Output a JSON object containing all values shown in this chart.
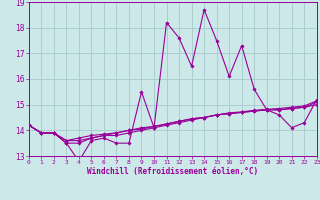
{
  "xlabel": "Windchill (Refroidissement éolien,°C)",
  "x": [
    0,
    1,
    2,
    3,
    4,
    5,
    6,
    7,
    8,
    9,
    10,
    11,
    12,
    13,
    14,
    15,
    16,
    17,
    18,
    19,
    20,
    21,
    22,
    23
  ],
  "line1": [
    14.2,
    13.9,
    13.9,
    13.5,
    12.8,
    13.6,
    13.7,
    13.5,
    13.5,
    15.5,
    14.1,
    18.2,
    17.6,
    16.5,
    18.7,
    17.5,
    16.1,
    17.3,
    15.6,
    14.8,
    14.6,
    14.1,
    14.3,
    15.2
  ],
  "line2": [
    14.2,
    13.9,
    13.9,
    13.5,
    13.5,
    13.7,
    13.8,
    13.8,
    13.9,
    14.0,
    14.1,
    14.2,
    14.3,
    14.4,
    14.5,
    14.6,
    14.65,
    14.7,
    14.75,
    14.8,
    14.8,
    14.85,
    14.9,
    15.0
  ],
  "line3": [
    14.2,
    13.9,
    13.9,
    13.6,
    13.6,
    13.7,
    13.8,
    13.9,
    14.0,
    14.1,
    14.15,
    14.25,
    14.35,
    14.45,
    14.5,
    14.6,
    14.65,
    14.7,
    14.75,
    14.8,
    14.8,
    14.85,
    14.9,
    15.1
  ],
  "line4": [
    14.2,
    13.9,
    13.9,
    13.6,
    13.7,
    13.8,
    13.85,
    13.9,
    14.0,
    14.05,
    14.15,
    14.25,
    14.35,
    14.45,
    14.5,
    14.6,
    14.68,
    14.72,
    14.78,
    14.82,
    14.85,
    14.9,
    14.95,
    15.15
  ],
  "line_color": "#990099",
  "bg_color": "#cce8e8",
  "grid_color": "#aacece",
  "ylim": [
    13.0,
    19.0
  ],
  "xlim": [
    0,
    23
  ],
  "yticks": [
    13,
    14,
    15,
    16,
    17,
    18,
    19
  ],
  "xticks": [
    0,
    1,
    2,
    3,
    4,
    5,
    6,
    7,
    8,
    9,
    10,
    11,
    12,
    13,
    14,
    15,
    16,
    17,
    18,
    19,
    20,
    21,
    22,
    23
  ],
  "xlabel_fontsize": 5.5,
  "ytick_fontsize": 5.5,
  "xtick_fontsize": 4.5
}
